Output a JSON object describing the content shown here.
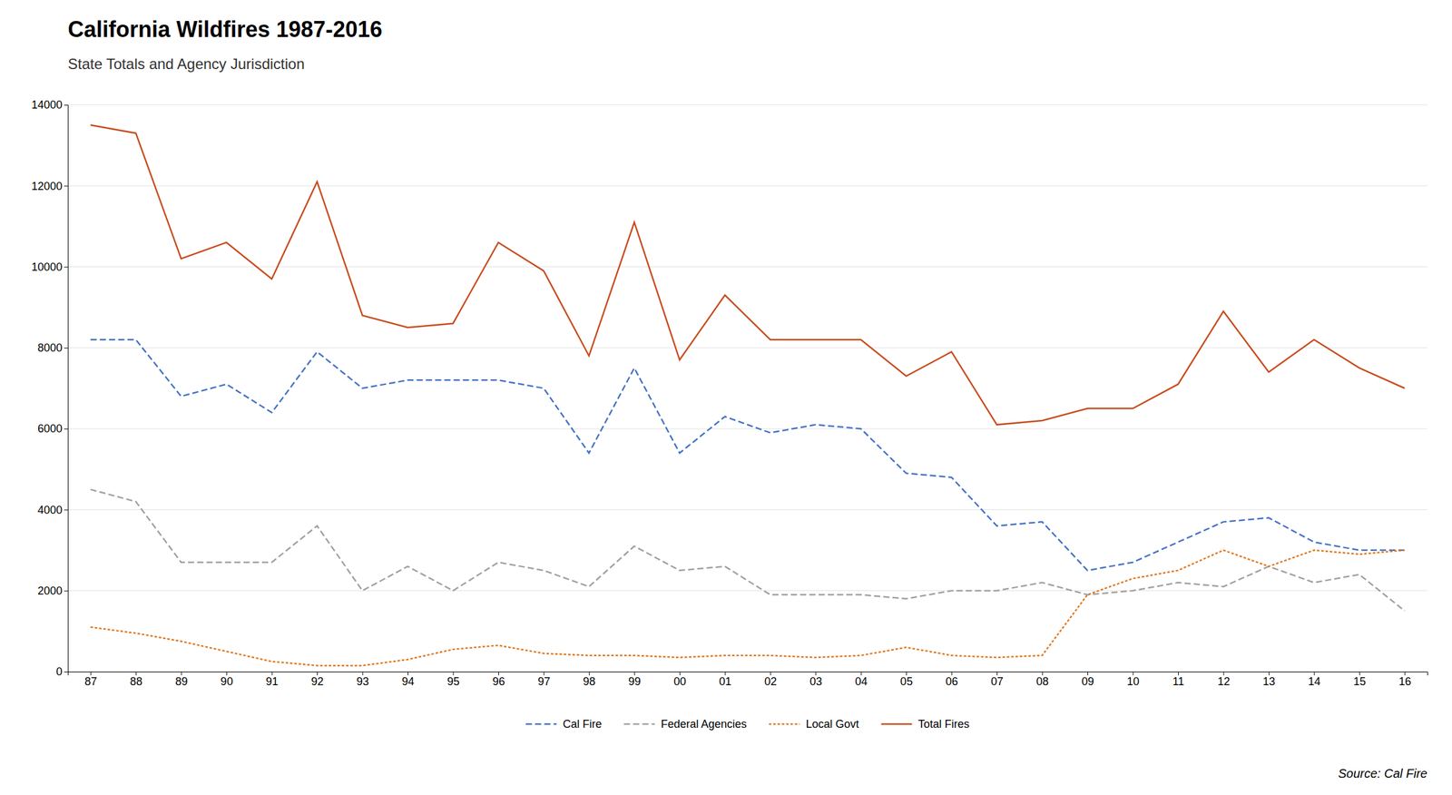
{
  "chart_data": {
    "type": "line",
    "title": "California Wildfires 1987-2016",
    "subtitle": "State Totals and Agency Jurisdiction",
    "annotations": [
      "Source: Cal Fire"
    ],
    "categories": [
      "87",
      "88",
      "89",
      "90",
      "91",
      "92",
      "93",
      "94",
      "95",
      "96",
      "97",
      "98",
      "99",
      "00",
      "01",
      "02",
      "03",
      "04",
      "05",
      "06",
      "07",
      "08",
      "09",
      "10",
      "11",
      "12",
      "13",
      "14",
      "15",
      "16"
    ],
    "series": [
      {
        "name": "Cal Fire",
        "color": "#4472C4",
        "line_style": "dashed",
        "values": [
          8200,
          8200,
          6800,
          7100,
          6400,
          7900,
          7000,
          7200,
          7200,
          7200,
          7000,
          5400,
          7500,
          5400,
          6300,
          5900,
          6100,
          6000,
          4900,
          4800,
          3600,
          3700,
          2500,
          2700,
          3200,
          3700,
          3800,
          3200,
          3000,
          3000
        ]
      },
      {
        "name": "Federal Agencies",
        "color": "#A0A0A0",
        "line_style": "dashed",
        "values": [
          4500,
          4200,
          2700,
          2700,
          2700,
          3600,
          2000,
          2600,
          2000,
          2700,
          2500,
          2100,
          3100,
          2500,
          2600,
          1900,
          1900,
          1900,
          1800,
          2000,
          2000,
          2200,
          1900,
          2000,
          2200,
          2100,
          2600,
          2200,
          2400,
          1500
        ]
      },
      {
        "name": "Local Govt",
        "color": "#E07820",
        "line_style": "dotted",
        "values": [
          1100,
          950,
          750,
          500,
          250,
          150,
          150,
          300,
          550,
          650,
          450,
          400,
          400,
          350,
          400,
          400,
          350,
          400,
          600,
          400,
          350,
          400,
          1900,
          2300,
          2500,
          3000,
          2600,
          3000,
          2900,
          3000
        ]
      },
      {
        "name": "Total Fires",
        "color": "#C94B1C",
        "line_style": "solid",
        "values": [
          13500,
          13300,
          10200,
          10600,
          9700,
          12100,
          8800,
          8500,
          8600,
          10600,
          9900,
          7800,
          11100,
          7700,
          9300,
          8200,
          8200,
          8200,
          7300,
          7900,
          6100,
          6200,
          6500,
          6500,
          7100,
          8900,
          7400,
          8200,
          7500,
          7000
        ]
      }
    ],
    "ylim": [
      0,
      14000
    ],
    "yticks": [
      0,
      2000,
      4000,
      6000,
      8000,
      10000,
      12000,
      14000
    ],
    "grid": true,
    "legend": "bottom"
  }
}
